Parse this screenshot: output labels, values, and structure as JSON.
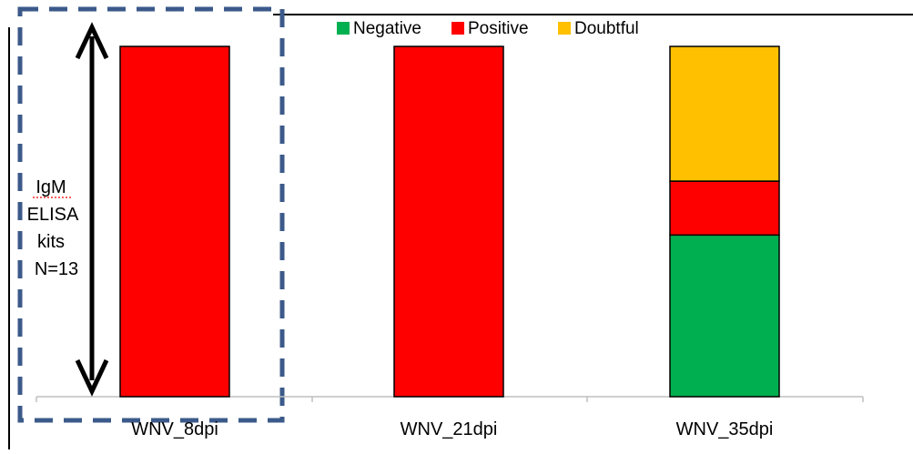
{
  "chart_data": {
    "type": "bar",
    "stacked": true,
    "categories": [
      "WNV_8dpi",
      "WNV_21dpi",
      "WNV_35dpi"
    ],
    "series": [
      {
        "name": "Negative",
        "color": "#00B050",
        "values": [
          0,
          0,
          6
        ]
      },
      {
        "name": "Positive",
        "color": "#FF0000",
        "values": [
          13,
          13,
          2
        ]
      },
      {
        "name": "Doubtful",
        "color": "#FFC000",
        "values": [
          0,
          0,
          5
        ]
      }
    ],
    "ylim": [
      0,
      13
    ],
    "legend_position": "top",
    "grid": false
  },
  "annotation": {
    "lines": [
      "IgM",
      "ELISA",
      "kits",
      "N=13"
    ]
  }
}
